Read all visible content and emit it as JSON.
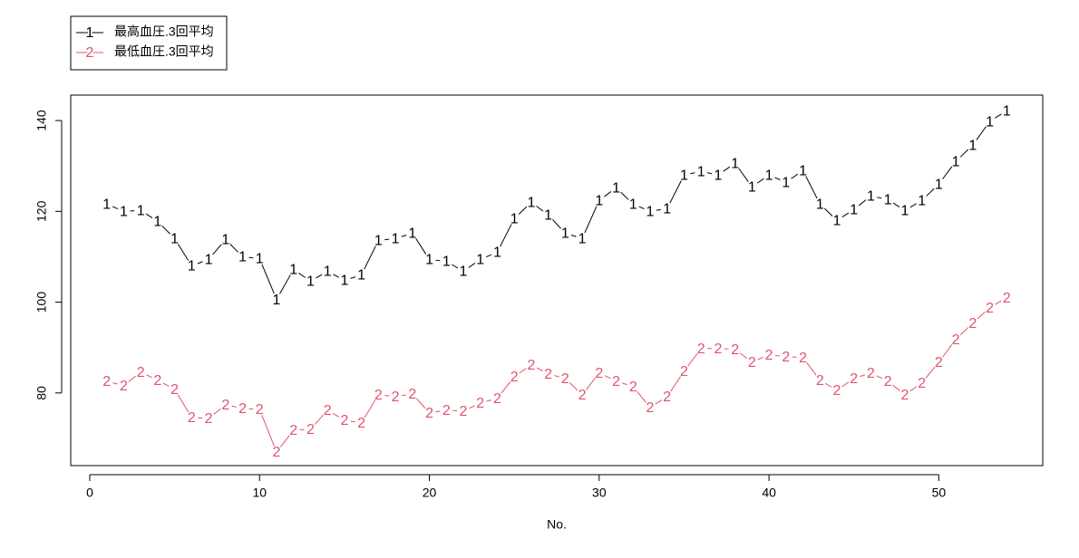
{
  "chart_data": {
    "type": "line",
    "x_label": "No.",
    "x": [
      1,
      2,
      3,
      4,
      5,
      6,
      7,
      8,
      9,
      10,
      11,
      12,
      13,
      14,
      15,
      16,
      17,
      18,
      19,
      20,
      21,
      22,
      23,
      24,
      25,
      26,
      27,
      28,
      29,
      30,
      31,
      32,
      33,
      34,
      35,
      36,
      37,
      38,
      39,
      40,
      41,
      42,
      43,
      44,
      45,
      46,
      47,
      48,
      49,
      50,
      51,
      52,
      53,
      54
    ],
    "series": [
      {
        "name": "最高血圧.3回平均",
        "marker": "1",
        "color": "#000000",
        "values": [
          121.6,
          120,
          120.2,
          117.8,
          114,
          108,
          109.4,
          113.8,
          110,
          109.6,
          100.6,
          107.2,
          104.6,
          106.8,
          104.8,
          106,
          113.6,
          114,
          115.2,
          109.4,
          109,
          106.8,
          109.4,
          111,
          118.4,
          122,
          119.2,
          115.2,
          114,
          122.4,
          125.2,
          121.6,
          120,
          120.6,
          128,
          128.8,
          128,
          130.6,
          125.4,
          128,
          126.4,
          129,
          121.6,
          118,
          120.4,
          123.4,
          122.6,
          120.2,
          122.4,
          126,
          131,
          134.6,
          139.8,
          142.2
        ]
      },
      {
        "name": "最低血圧.3回平均",
        "marker": "2",
        "color": "#DF536B",
        "values": [
          82.6,
          81.6,
          84.6,
          82.8,
          80.8,
          74.6,
          74.4,
          77.4,
          76.6,
          76.4,
          67,
          71.8,
          72,
          76.2,
          74,
          73.4,
          79.6,
          79.2,
          79.8,
          75.6,
          76.2,
          76,
          77.8,
          78.8,
          83.6,
          86.2,
          84.2,
          83.2,
          79.6,
          84.4,
          82.6,
          81.4,
          76.8,
          79.2,
          84.8,
          89.8,
          89.8,
          89.6,
          86.8,
          88.4,
          88,
          87.8,
          82.8,
          80.6,
          83.2,
          84.4,
          82.6,
          79.6,
          82.2,
          86.8,
          91.8,
          95.4,
          98.8,
          101
        ]
      }
    ],
    "xlim": [
      -1.12,
      56.12
    ],
    "xticks": [
      0,
      10,
      20,
      30,
      40,
      50
    ],
    "ylim": [
      64,
      145.6
    ],
    "yticks": [
      80,
      100,
      120,
      140
    ],
    "legend": "top-left"
  }
}
